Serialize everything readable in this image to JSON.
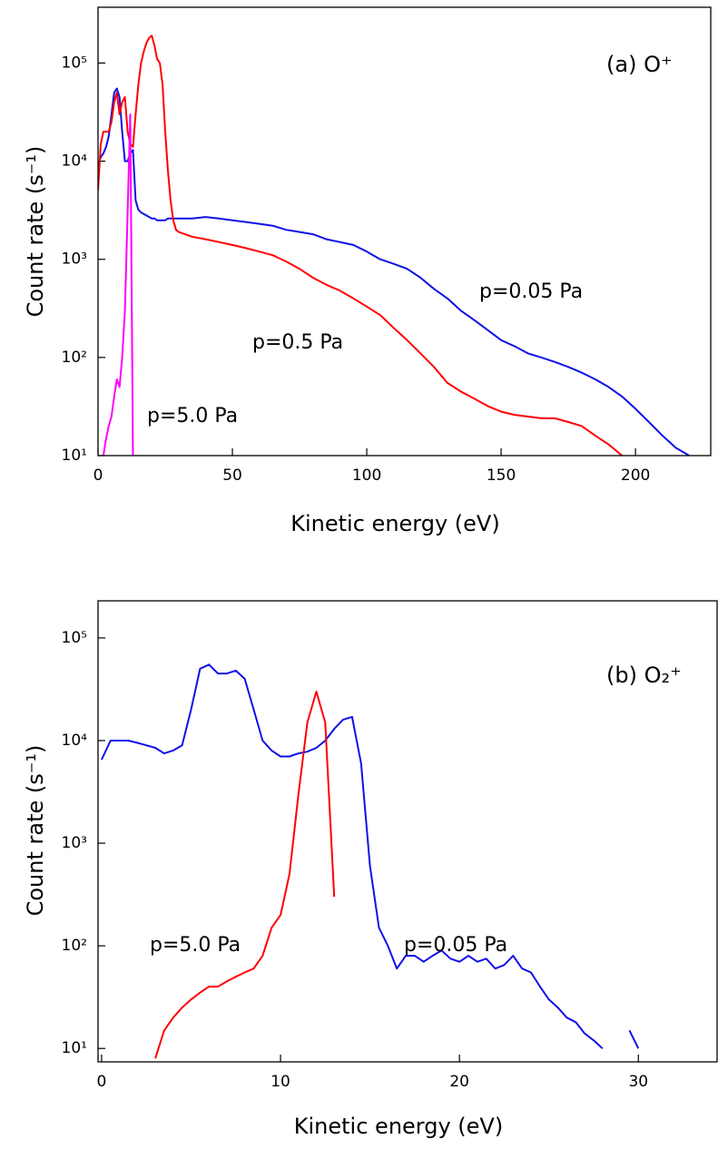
{
  "chart_data": [
    {
      "type": "line",
      "annotation": "(a) O⁺",
      "xlabel": "Kinetic energy (eV)",
      "ylabel": "Count rate (s⁻¹)",
      "log_y": true,
      "xlim": [
        0,
        228
      ],
      "xticks": [
        0,
        50,
        100,
        150,
        200
      ],
      "ylim": [
        10,
        370000
      ],
      "yticks": [
        {
          "value": 10,
          "label": "10¹"
        },
        {
          "value": 100,
          "label": "10²"
        },
        {
          "value": 1000,
          "label": "10³"
        },
        {
          "value": 10000,
          "label": "10⁴"
        },
        {
          "value": 100000,
          "label": "10⁵"
        }
      ],
      "x": [
        0,
        1,
        2,
        3,
        4,
        5,
        6,
        7,
        8,
        9,
        10,
        11,
        12,
        13,
        14,
        15,
        16,
        17,
        18,
        19,
        20,
        21,
        22,
        23,
        24,
        25,
        26,
        27,
        28,
        29,
        30,
        35,
        40,
        45,
        50,
        55,
        60,
        65,
        70,
        75,
        80,
        85,
        90,
        95,
        100,
        105,
        110,
        115,
        120,
        125,
        130,
        135,
        140,
        145,
        150,
        155,
        160,
        165,
        170,
        175,
        180,
        185,
        190,
        195,
        200,
        205,
        210,
        215,
        220,
        225
      ],
      "series": [
        {
          "name": "p=0.05 Pa",
          "color": "#1010e8",
          "values": [
            9000,
            11000,
            12000,
            14000,
            18000,
            30000,
            50000,
            55000,
            45000,
            20000,
            10000,
            10000,
            12000,
            13000,
            4000,
            3200,
            3000,
            2900,
            2800,
            2700,
            2600,
            2600,
            2500,
            2500,
            2500,
            2500,
            2600,
            2600,
            2600,
            2600,
            2600,
            2600,
            2700,
            2600,
            2500,
            2400,
            2300,
            2200,
            2000,
            1900,
            1800,
            1600,
            1500,
            1400,
            1200,
            1000,
            900,
            800,
            650,
            500,
            400,
            300,
            240,
            190,
            150,
            130,
            110,
            100,
            90,
            80,
            70,
            60,
            50,
            40,
            30,
            22,
            16,
            12,
            10,
            null
          ]
        },
        {
          "name": "p=0.5 Pa",
          "color": "#ff0000",
          "values": [
            5000,
            15000,
            20000,
            20000,
            20000,
            25000,
            40000,
            50000,
            30000,
            40000,
            45000,
            20000,
            15000,
            14000,
            30000,
            60000,
            100000,
            130000,
            160000,
            180000,
            190000,
            150000,
            110000,
            100000,
            60000,
            20000,
            8000,
            4000,
            2500,
            2000,
            1900,
            1700,
            1600,
            1500,
            1400,
            1300,
            1200,
            1100,
            950,
            800,
            650,
            550,
            480,
            400,
            330,
            270,
            200,
            150,
            110,
            80,
            55,
            45,
            38,
            32,
            28,
            26,
            25,
            24,
            24,
            22,
            20,
            16,
            13,
            10,
            null,
            null,
            null,
            null,
            null,
            null
          ]
        },
        {
          "name": "p=5.0 Pa",
          "color": "#ff00ff",
          "values": [
            null,
            null,
            10,
            15,
            20,
            25,
            40,
            60,
            50,
            100,
            300,
            3000,
            30000,
            10,
            null,
            null,
            null,
            null,
            null,
            null,
            null,
            null,
            null,
            null,
            null,
            null,
            null,
            null,
            null,
            null,
            null,
            null,
            null,
            null,
            null,
            null,
            null,
            null,
            null,
            null,
            null,
            null,
            null,
            null,
            null,
            null,
            null,
            null,
            null,
            null,
            null,
            null,
            null,
            null,
            null,
            null,
            null,
            null,
            null,
            null,
            null,
            null,
            null,
            null,
            null,
            null,
            null,
            null,
            null,
            null
          ]
        }
      ]
    },
    {
      "type": "line",
      "annotation": "(b) O₂⁺",
      "xlabel": "Kinetic energy (eV)",
      "ylabel": "Count rate (s⁻¹)",
      "log_y": true,
      "xlim": [
        -0.2,
        34.4
      ],
      "xticks": [
        0,
        10,
        20,
        30
      ],
      "ylim": [
        7.4,
        230000
      ],
      "yticks": [
        {
          "value": 10,
          "label": "10¹"
        },
        {
          "value": 100,
          "label": "10²"
        },
        {
          "value": 1000,
          "label": "10³"
        },
        {
          "value": 10000,
          "label": "10⁴"
        },
        {
          "value": 100000,
          "label": "10⁵"
        }
      ],
      "x": [
        0,
        0.5,
        1,
        1.5,
        2,
        2.5,
        3,
        3.5,
        4,
        4.5,
        5,
        5.5,
        6,
        6.5,
        7,
        7.5,
        8,
        8.5,
        9,
        9.5,
        10,
        10.5,
        11,
        11.5,
        12,
        12.5,
        13,
        13.5,
        14,
        14.5,
        15,
        15.5,
        16,
        16.5,
        17,
        17.5,
        18,
        18.5,
        19,
        19.5,
        20,
        20.5,
        21,
        21.5,
        22,
        22.5,
        23,
        23.5,
        24,
        24.5,
        25,
        25.5,
        26,
        26.5,
        27,
        27.5,
        28,
        28.5,
        29,
        29.5,
        30,
        30.5,
        31
      ],
      "series": [
        {
          "name": "p=0.05 Pa",
          "color": "#1010e8",
          "values": [
            6500,
            10000,
            10000,
            10000,
            9500,
            9000,
            8500,
            7500,
            8000,
            9000,
            20000,
            50000,
            55000,
            45000,
            45000,
            48000,
            40000,
            20000,
            10000,
            8000,
            7000,
            7000,
            7500,
            7800,
            8500,
            10000,
            13000,
            16000,
            17000,
            6000,
            600,
            150,
            100,
            60,
            80,
            80,
            70,
            80,
            90,
            75,
            70,
            80,
            70,
            75,
            60,
            65,
            80,
            60,
            55,
            40,
            30,
            25,
            20,
            18,
            14,
            12,
            10,
            null,
            null,
            15,
            10,
            null,
            null
          ]
        },
        {
          "name": "p=5.0 Pa",
          "color": "#ff0000",
          "values": [
            null,
            null,
            null,
            null,
            null,
            null,
            8,
            15,
            20,
            25,
            30,
            35,
            40,
            40,
            45,
            50,
            55,
            60,
            80,
            150,
            200,
            500,
            3000,
            15000,
            30000,
            15000,
            300,
            null,
            null,
            null,
            null,
            null,
            null,
            null,
            null,
            null,
            null,
            null,
            null,
            null,
            null,
            null,
            null,
            null,
            null,
            null,
            null,
            null,
            null,
            null,
            null,
            null,
            null,
            null,
            null,
            null,
            null,
            null,
            null,
            null,
            null,
            null,
            null
          ]
        }
      ]
    }
  ]
}
